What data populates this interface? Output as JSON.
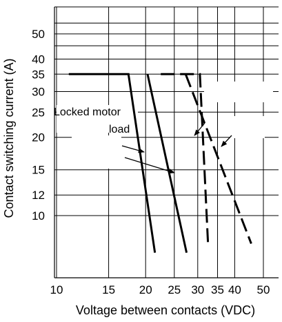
{
  "chart_data": {
    "type": "line",
    "title": "",
    "xlabel": "Voltage between contacts (VDC)",
    "ylabel": "Contact switching current (A)",
    "xscale": "log",
    "yscale": "log",
    "xlim": [
      10,
      60
    ],
    "ylim": [
      7,
      60
    ],
    "grid": true,
    "legend": "none",
    "x_ticks": [
      10,
      15,
      20,
      25,
      30,
      35,
      40,
      50
    ],
    "x_tick_labels": [
      "10",
      "15",
      "20",
      "25",
      "30",
      "35",
      "40",
      "50"
    ],
    "y_ticks": [
      10,
      12,
      15,
      20,
      25,
      30,
      35,
      40,
      50
    ],
    "y_tick_labels": [
      "10",
      "12",
      "15",
      "20",
      "25",
      "30",
      "35",
      "40",
      "50"
    ],
    "x_grid": [
      10,
      15,
      20,
      25,
      30,
      35,
      40,
      50,
      60
    ],
    "y_grid": [
      10,
      12,
      15,
      20,
      25,
      30,
      35,
      40,
      45,
      50,
      55
    ],
    "series": [
      {
        "style": "solid",
        "x": [
          11,
          17.5,
          21.5
        ],
        "y": [
          35,
          35,
          7.2
        ]
      },
      {
        "style": "solid",
        "x": [
          20.3,
          27.5
        ],
        "y": [
          35,
          7.2
        ]
      },
      {
        "style": "dashed",
        "x": [
          22.5,
          30.5,
          32.5
        ],
        "y": [
          35,
          35,
          7.8
        ]
      },
      {
        "style": "dashed",
        "x": [
          27.3,
          45.5
        ],
        "y": [
          35,
          7.8
        ]
      }
    ],
    "annotations": [
      {
        "text_lines": [
          "Locked motor",
          "load"
        ]
      }
    ]
  }
}
